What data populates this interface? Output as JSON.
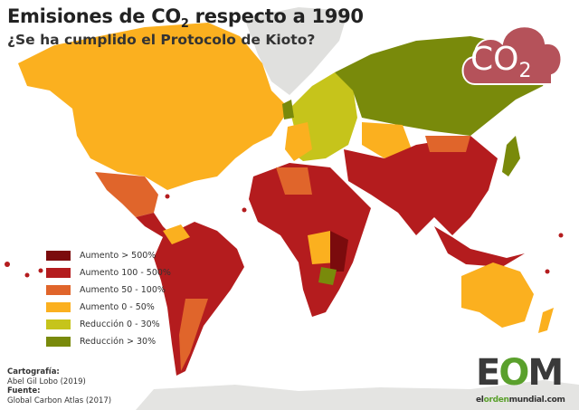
{
  "header": {
    "title_main": "Emisiones de CO",
    "title_sub": "2",
    "title_rest": " respecto a 1990",
    "subtitle": "¿Se ha cumplido el Protocolo de Kioto?"
  },
  "legend": {
    "items": [
      {
        "label": "Aumento > 500%",
        "color": "#7b0b0d"
      },
      {
        "label": "Aumento 100 - 500%",
        "color": "#b41c1e"
      },
      {
        "label": "Aumento 50 - 100%",
        "color": "#e0652b"
      },
      {
        "label": "Aumento 0 - 50%",
        "color": "#fbb01f"
      },
      {
        "label": "Reducción 0 - 30%",
        "color": "#c6c41b"
      },
      {
        "label": "Reducción > 30%",
        "color": "#798a0b"
      }
    ]
  },
  "credits": {
    "cartography_label": "Cartografía:",
    "cartography": "Abel Gil Lobo (2019)",
    "source_label": "Fuente:",
    "source": "Global Carbon Atlas (2017)"
  },
  "badge": {
    "text": "CO",
    "sub": "2",
    "color": "#b5525a"
  },
  "logo": {
    "mark_e": "E",
    "mark_o": "O",
    "mark_m": "M",
    "url_a": "el",
    "url_b": "orden",
    "url_c": "mundial.com"
  }
}
